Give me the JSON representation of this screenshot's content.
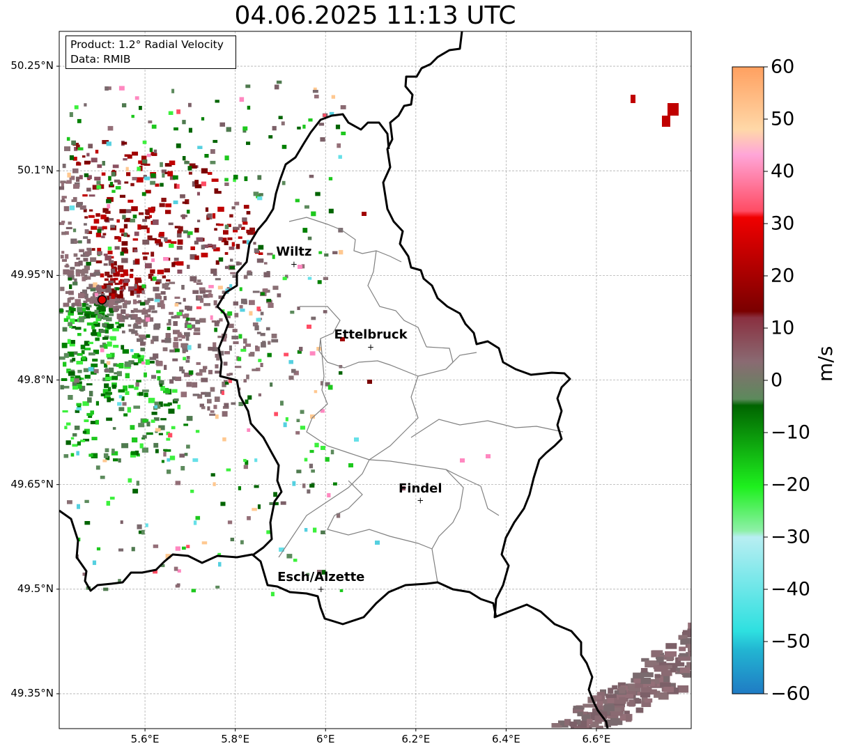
{
  "title": "04.06.2025 11:13 UTC",
  "info": {
    "product": "Product: 1.2° Radial Velocity",
    "data_source": "Data: RMIB"
  },
  "lat_ticks": [
    "50.25°N",
    "50.1°N",
    "49.95°N",
    "49.8°N",
    "49.65°N",
    "49.5°N",
    "49.35°N"
  ],
  "lon_ticks": [
    "5.6°E",
    "5.8°E",
    "6°E",
    "6.2°E",
    "6.4°E",
    "6.6°E"
  ],
  "cities": [
    {
      "name": "Wiltz",
      "lon": 5.93,
      "lat": 49.966
    },
    {
      "name": "Ettelbruck",
      "lon": 6.1,
      "lat": 49.847
    },
    {
      "name": "Findel",
      "lon": 6.21,
      "lat": 49.627
    },
    {
      "name": "Esch/Alzette",
      "lon": 5.99,
      "lat": 49.5
    }
  ],
  "radar_site": {
    "lon": 5.505,
    "lat": 49.915
  },
  "colorbar": {
    "label": "m/s",
    "ticks": [
      "60",
      "50",
      "40",
      "30",
      "20",
      "10",
      "0",
      "−10",
      "−20",
      "−30",
      "−40",
      "−50",
      "−60"
    ],
    "range": [
      -60,
      60
    ]
  },
  "colors": {
    "border": "#000000",
    "canton_lines": "#808080",
    "radar_marker": "#e00000"
  }
}
